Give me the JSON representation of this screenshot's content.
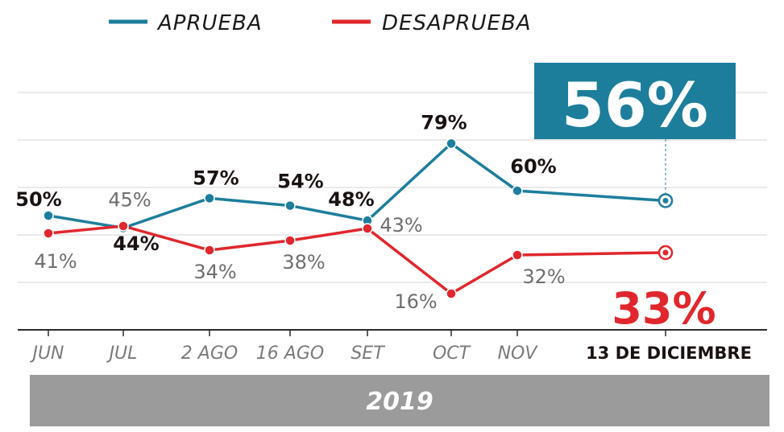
{
  "chart_data": {
    "type": "line",
    "categories": [
      "JUN",
      "JUL",
      "2 AGO",
      "16 AGO",
      "SET",
      "OCT",
      "NOV",
      "13 DE DICIEMBRE"
    ],
    "series": [
      {
        "name": "APRUEBA",
        "color": "#1d7e9c",
        "values": [
          50,
          45,
          57,
          54,
          48,
          79,
          60,
          56
        ],
        "labels": [
          "50%",
          "45%",
          "57%",
          "54%",
          "48%",
          "79%",
          "60%",
          "56%"
        ]
      },
      {
        "name": "DESAPRUEBA",
        "color": "#e0272d",
        "values": [
          41,
          44,
          34,
          38,
          43,
          16,
          32,
          33
        ],
        "labels": [
          "41%",
          "44%",
          "34%",
          "38%",
          "43%",
          "16%",
          "32%",
          "33%"
        ]
      }
    ],
    "year": "2019",
    "ylim": [
      0,
      100
    ],
    "grid": true,
    "legend": "top-left"
  }
}
